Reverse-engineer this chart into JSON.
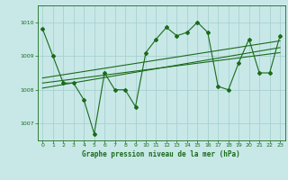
{
  "title": "Graphe pression niveau de la mer (hPa)",
  "bg_color": "#c8e8e8",
  "grid_color": "#a8d0d0",
  "line_color": "#1a6b1a",
  "xlim": [
    -0.5,
    23.5
  ],
  "ylim": [
    1006.5,
    1010.5
  ],
  "yticks": [
    1007,
    1008,
    1009,
    1010
  ],
  "xticks": [
    0,
    1,
    2,
    3,
    4,
    5,
    6,
    7,
    8,
    9,
    10,
    11,
    12,
    13,
    14,
    15,
    16,
    17,
    18,
    19,
    20,
    21,
    22,
    23
  ],
  "series1": [
    1009.8,
    1009.0,
    1008.2,
    1008.2,
    1007.7,
    1006.7,
    1008.5,
    1008.0,
    1008.0,
    1007.5,
    1009.1,
    1009.5,
    1009.85,
    1009.6,
    1009.7,
    1010.0,
    1009.7,
    1008.1,
    1008.0,
    1008.8,
    1009.5,
    1008.5,
    1008.5,
    1009.6
  ],
  "series2_x": [
    0,
    23
  ],
  "series2_y": [
    1008.05,
    1009.25
  ],
  "series3_x": [
    0,
    23
  ],
  "series3_y": [
    1008.2,
    1009.1
  ],
  "series4_x": [
    0,
    23
  ],
  "series4_y": [
    1008.35,
    1009.45
  ]
}
